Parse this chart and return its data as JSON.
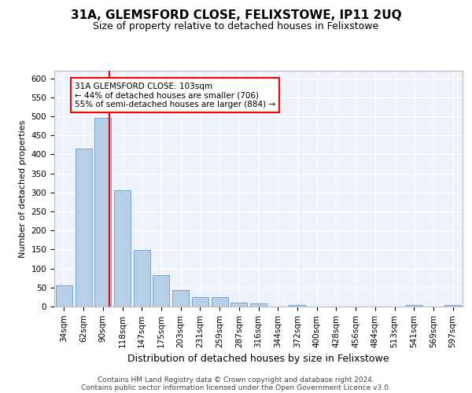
{
  "title1": "31A, GLEMSFORD CLOSE, FELIXSTOWE, IP11 2UQ",
  "title2": "Size of property relative to detached houses in Felixstowe",
  "xlabel": "Distribution of detached houses by size in Felixstowe",
  "ylabel": "Number of detached properties",
  "bins": [
    "34sqm",
    "62sqm",
    "90sqm",
    "118sqm",
    "147sqm",
    "175sqm",
    "203sqm",
    "231sqm",
    "259sqm",
    "287sqm",
    "316sqm",
    "344sqm",
    "372sqm",
    "400sqm",
    "428sqm",
    "456sqm",
    "484sqm",
    "513sqm",
    "541sqm",
    "569sqm",
    "597sqm"
  ],
  "values": [
    55,
    415,
    495,
    305,
    148,
    82,
    44,
    25,
    25,
    10,
    8,
    0,
    5,
    0,
    0,
    0,
    0,
    0,
    5,
    0,
    5
  ],
  "bar_color": "#b8cfe8",
  "bar_edge_color": "#6699cc",
  "vline_color": "red",
  "vline_x": 2.35,
  "annotation_text": "31A GLEMSFORD CLOSE: 103sqm\n← 44% of detached houses are smaller (706)\n55% of semi-detached houses are larger (884) →",
  "annotation_box_facecolor": "white",
  "annotation_box_edgecolor": "red",
  "ylim": [
    0,
    620
  ],
  "yticks": [
    0,
    50,
    100,
    150,
    200,
    250,
    300,
    350,
    400,
    450,
    500,
    550,
    600
  ],
  "footer_line1": "Contains HM Land Registry data © Crown copyright and database right 2024.",
  "footer_line2": "Contains public sector information licensed under the Open Government Licence v3.0.",
  "bg_color": "#eef2fb",
  "grid_color": "white",
  "title1_fontsize": 11,
  "title2_fontsize": 9,
  "ylabel_fontsize": 8,
  "xlabel_fontsize": 9,
  "tick_fontsize": 7.5,
  "annotation_fontsize": 7.5,
  "footer_fontsize": 6.5
}
